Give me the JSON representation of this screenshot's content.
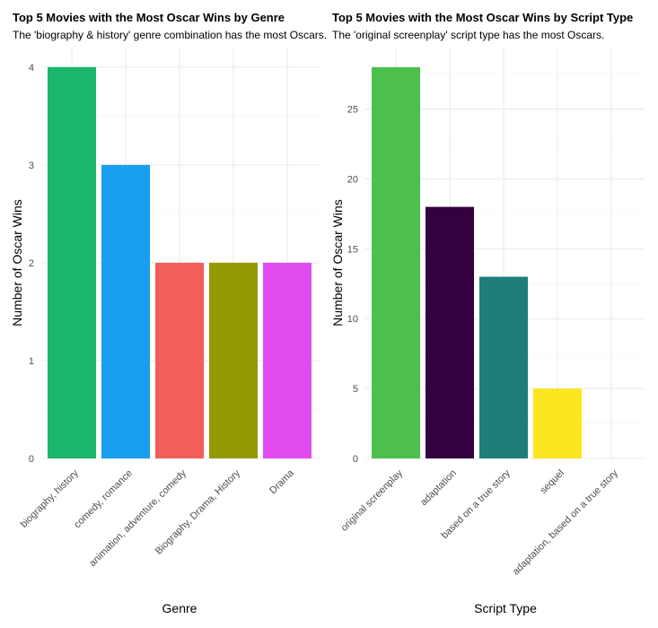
{
  "chart_data": [
    {
      "type": "bar",
      "title": "Top 5 Movies with the Most Oscar Wins by Genre",
      "subtitle": "The 'biography & history' genre combination has the most Oscars.",
      "xlabel": "Genre",
      "ylabel": "Number of Oscar Wins",
      "categories": [
        "biography, history",
        "comedy, romance",
        "animation, adventure, comedy",
        "Biography, Drama, History",
        "Drama"
      ],
      "values": [
        4,
        3,
        2,
        2,
        2
      ],
      "colors": [
        "#1bb66c",
        "#1a9ff0",
        "#f35e5c",
        "#949a03",
        "#e14cf0"
      ],
      "ylim": [
        0,
        4
      ],
      "yticks": [
        0,
        1,
        2,
        3,
        4
      ],
      "grid": true,
      "legend": "none"
    },
    {
      "type": "bar",
      "title": "Top 5 Movies with the Most Oscar Wins by Script Type",
      "subtitle": "The 'original screenplay' script type has the most Oscars.",
      "xlabel": "Script Type",
      "ylabel": "Number of Oscar Wins",
      "categories": [
        "original screenplay",
        "adaptation",
        "based on a true story",
        "sequel",
        "adaptation, based on a true story"
      ],
      "values": [
        28,
        18,
        13,
        5,
        0
      ],
      "colors": [
        "#4dbf4d",
        "#34003f",
        "#1f7d7a",
        "#fde51f",
        "#888888"
      ],
      "ylim": [
        0,
        28
      ],
      "yticks": [
        0,
        5,
        10,
        15,
        20,
        25
      ],
      "grid": true,
      "legend": "none"
    }
  ]
}
